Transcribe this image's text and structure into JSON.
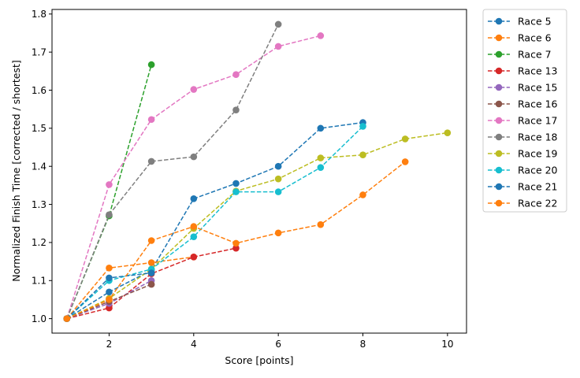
{
  "chart_data": {
    "type": "line",
    "title": "",
    "xlabel": "Score [points]",
    "ylabel": "Normalized Finish Time [corrected / shortest]",
    "xlim": [
      0.65,
      10.45
    ],
    "ylim": [
      0.962,
      1.812
    ],
    "xticks": [
      2,
      4,
      6,
      8,
      10
    ],
    "yticks": [
      1.0,
      1.1,
      1.2,
      1.3,
      1.4,
      1.5,
      1.6,
      1.7,
      1.8
    ],
    "grid": false,
    "legend_position": "outside-right",
    "line_style": "dashed",
    "marker": "circle",
    "series": [
      {
        "name": "Race 5",
        "color": "#1f77b4",
        "x": [
          1,
          2,
          3,
          4,
          5,
          6,
          7,
          8
        ],
        "y": [
          1.0,
          1.07,
          1.127,
          1.315,
          1.355,
          1.4,
          1.5,
          1.515
        ]
      },
      {
        "name": "Race 6",
        "color": "#ff7f0e",
        "x": [
          1,
          2,
          3,
          4
        ],
        "y": [
          1.0,
          1.133,
          1.147,
          1.162
        ]
      },
      {
        "name": "Race 7",
        "color": "#2ca02c",
        "x": [
          1,
          2,
          3
        ],
        "y": [
          1.0,
          1.27,
          1.667
        ]
      },
      {
        "name": "Race 13",
        "color": "#d62728",
        "x": [
          1,
          2,
          3,
          4,
          5
        ],
        "y": [
          1.0,
          1.028,
          1.118,
          1.162,
          1.185
        ]
      },
      {
        "name": "Race 15",
        "color": "#9467bd",
        "x": [
          1,
          2,
          3
        ],
        "y": [
          1.0,
          1.04,
          1.1
        ]
      },
      {
        "name": "Race 16",
        "color": "#8c564b",
        "x": [
          1,
          2,
          3
        ],
        "y": [
          1.0,
          1.045,
          1.09
        ]
      },
      {
        "name": "Race 17",
        "color": "#e377c2",
        "x": [
          1,
          2,
          3,
          4,
          5,
          6,
          7
        ],
        "y": [
          1.0,
          1.352,
          1.523,
          1.602,
          1.641,
          1.715,
          1.743
        ]
      },
      {
        "name": "Race 18",
        "color": "#7f7f7f",
        "x": [
          1,
          2,
          3,
          4,
          5,
          6
        ],
        "y": [
          1.0,
          1.273,
          1.413,
          1.425,
          1.548,
          1.773
        ]
      },
      {
        "name": "Race 19",
        "color": "#bcbd22",
        "x": [
          1,
          2,
          3,
          4,
          5,
          6,
          7,
          8,
          9,
          10
        ],
        "y": [
          1.0,
          1.053,
          1.13,
          1.237,
          1.335,
          1.367,
          1.422,
          1.43,
          1.472,
          1.488
        ]
      },
      {
        "name": "Race 20",
        "color": "#17becf",
        "x": [
          1,
          2,
          3,
          4,
          5,
          6,
          7,
          8
        ],
        "y": [
          1.0,
          1.1,
          1.13,
          1.215,
          1.333,
          1.333,
          1.397,
          1.505
        ]
      },
      {
        "name": "Race 21",
        "color": "#1f77b4",
        "x": [
          1,
          2,
          3
        ],
        "y": [
          1.0,
          1.107,
          1.12
        ]
      },
      {
        "name": "Race 22",
        "color": "#ff7f0e",
        "x": [
          1,
          2,
          3,
          4,
          5,
          6,
          7,
          8,
          9
        ],
        "y": [
          1.0,
          1.05,
          1.205,
          1.242,
          1.198,
          1.225,
          1.247,
          1.325,
          1.412
        ]
      }
    ]
  }
}
